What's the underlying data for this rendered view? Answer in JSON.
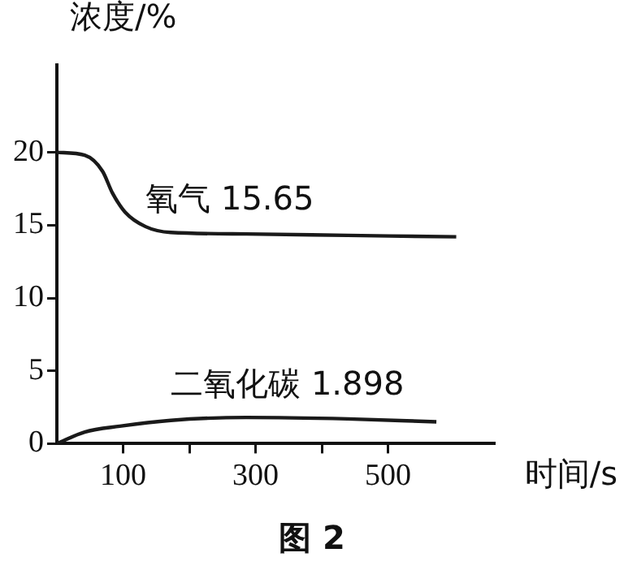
{
  "chart_data": {
    "type": "line",
    "xlabel": "时间/s",
    "ylabel": "浓度/%",
    "annotations": [
      "图 2"
    ],
    "xlim": [
      0,
      660
    ],
    "xticks": [
      {
        "value": 100,
        "label": "100"
      },
      {
        "value": 200,
        "label": null
      },
      {
        "value": 300,
        "label": "300"
      },
      {
        "value": 400,
        "label": null
      },
      {
        "value": 500,
        "label": "500"
      }
    ],
    "ylim": [
      0,
      26
    ],
    "yticks": [
      0,
      5,
      10,
      15,
      20
    ],
    "grid": false,
    "legend": false,
    "marker": "none",
    "line_style": "solid",
    "series": [
      {
        "name": "氧气 15.65",
        "color": "#1a1a1a",
        "x": [
          0,
          42,
          69,
          84,
          103,
          134,
          172,
          286,
          439,
          603
        ],
        "values": [
          20,
          19.8,
          18.7,
          17.2,
          15.9,
          14.9,
          14.5,
          14.4,
          14.3,
          14.2
        ]
      },
      {
        "name": "二氧化碳 1.898",
        "color": "#1a1a1a",
        "x": [
          0,
          42,
          95,
          172,
          286,
          439,
          573
        ],
        "values": [
          0,
          0.8,
          1.2,
          1.6,
          1.8,
          1.7,
          1.5
        ]
      }
    ]
  }
}
